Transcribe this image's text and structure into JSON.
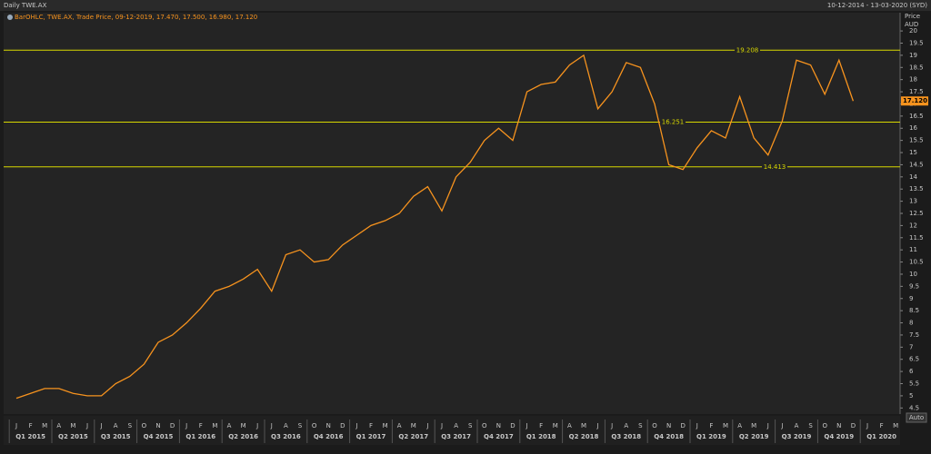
{
  "chart_data": {
    "type": "line",
    "title": "Daily TWE.AX",
    "date_range": "10-12-2014 - 13-03-2020 (SYD)",
    "legend_text": "BarOHLC, TWE.AX, Trade Price, 09-12-2019, 17.470, 17.500, 16.980, 17.120",
    "y_label": "Price",
    "y_unit": "AUD",
    "auto_button": "Auto",
    "categories": [
      "J",
      "F",
      "M",
      "A",
      "M",
      "J",
      "J",
      "A",
      "S",
      "O",
      "N",
      "D",
      "J",
      "F",
      "M",
      "A",
      "M",
      "J",
      "J",
      "A",
      "S",
      "O",
      "N",
      "D",
      "J",
      "F",
      "M",
      "A",
      "M",
      "J",
      "J",
      "A",
      "S",
      "O",
      "N",
      "D",
      "J",
      "F",
      "M",
      "A",
      "M",
      "J",
      "J",
      "A",
      "S",
      "O",
      "N",
      "D",
      "J",
      "F",
      "M",
      "A",
      "M",
      "J",
      "J",
      "A",
      "S",
      "O",
      "N",
      "D",
      "J",
      "F",
      "M"
    ],
    "quarters": [
      "Q1 2015",
      "Q2 2015",
      "Q3 2015",
      "Q4 2015",
      "Q1 2016",
      "Q2 2016",
      "Q3 2016",
      "Q4 2016",
      "Q1 2017",
      "Q2 2017",
      "Q3 2017",
      "Q4 2017",
      "Q1 2018",
      "Q2 2018",
      "Q3 2018",
      "Q4 2018",
      "Q1 2019",
      "Q2 2019",
      "Q3 2019",
      "Q4 2019",
      "Q1 2020"
    ],
    "series": [
      {
        "name": "TWE.AX",
        "color": "#f7931e",
        "values": [
          4.9,
          5.1,
          5.3,
          5.3,
          5.1,
          5.0,
          5.0,
          5.5,
          5.8,
          6.3,
          7.2,
          7.5,
          8.0,
          8.6,
          9.3,
          9.5,
          9.8,
          10.2,
          9.3,
          10.8,
          11.0,
          10.5,
          10.6,
          11.2,
          11.6,
          12.0,
          12.2,
          12.5,
          13.2,
          13.6,
          12.6,
          14.0,
          14.6,
          15.5,
          16.0,
          15.5,
          17.5,
          17.8,
          17.9,
          18.6,
          19.0,
          16.8,
          17.5,
          18.7,
          18.5,
          17.0,
          14.5,
          14.3,
          15.2,
          15.9,
          15.6,
          17.3,
          15.6,
          14.9,
          16.3,
          18.8,
          18.6,
          17.4,
          18.8,
          17.12,
          null,
          null,
          null
        ]
      }
    ],
    "last_price": {
      "value": 17.12,
      "label": "17.120"
    },
    "hlines": [
      19.208,
      16.251,
      14.413
    ],
    "hline_color": "#d8d800",
    "ylim": [
      4.25,
      20.75
    ],
    "yticks": [
      4.5,
      5,
      5.5,
      6,
      6.5,
      7,
      7.5,
      8,
      8.5,
      9,
      9.5,
      10,
      10.5,
      11,
      11.5,
      12,
      12.5,
      13,
      13.5,
      14,
      14.5,
      15,
      15.5,
      16,
      16.5,
      17,
      17.5,
      18,
      18.5,
      19,
      19.5,
      20
    ]
  }
}
